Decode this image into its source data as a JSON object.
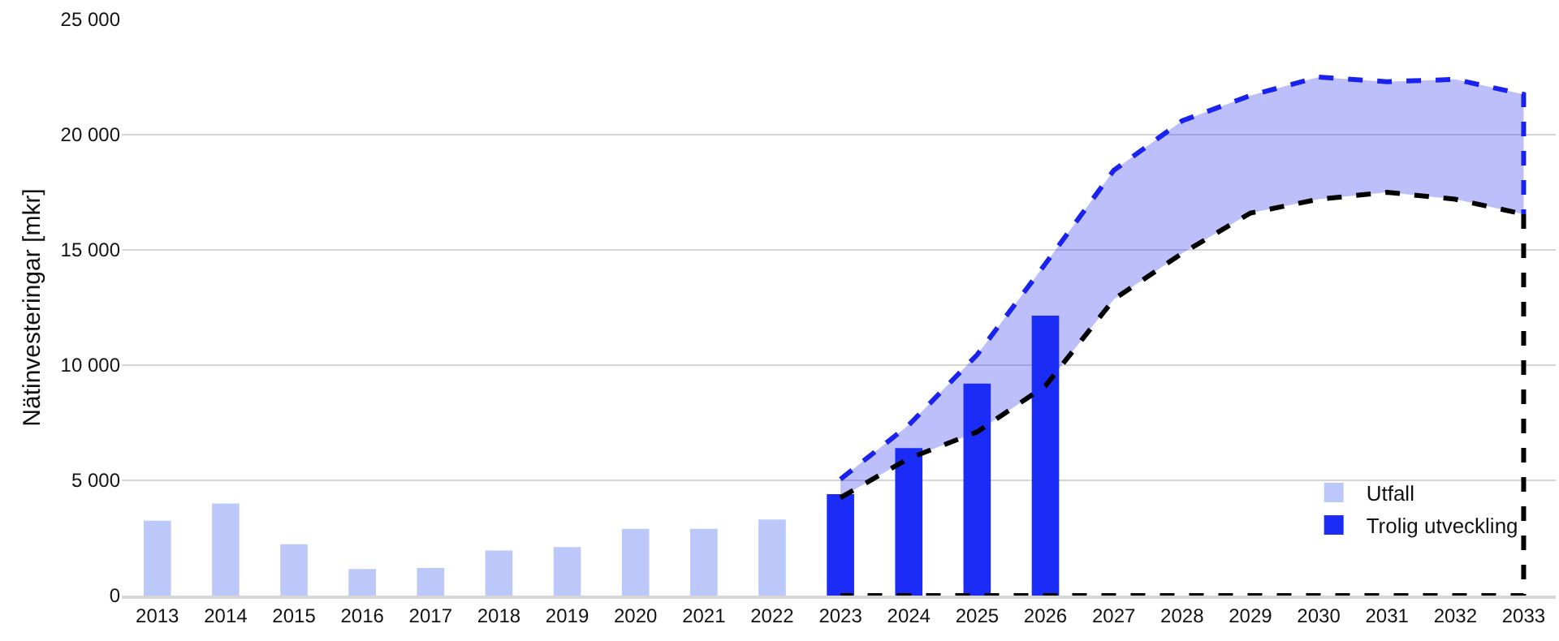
{
  "chart_data": {
    "type": "bar",
    "ylabel": "Nätinvesteringar [mkr]",
    "xlim": [
      2012.48,
      2033.47
    ],
    "xticks": [
      2013,
      2014,
      2015,
      2016,
      2017,
      2018,
      2019,
      2020,
      2021,
      2022,
      2023,
      2024,
      2025,
      2026,
      2027,
      2028,
      2029,
      2030,
      2031,
      2032,
      2033
    ],
    "ylim": [
      0,
      25000
    ],
    "yticks": [
      0,
      {
        "value": 5000,
        "label": "5 000"
      },
      {
        "value": 10000,
        "label": "10 000"
      },
      {
        "value": 15000,
        "label": "15 000"
      },
      {
        "value": 20000,
        "label": "20 000"
      },
      {
        "value": 25000,
        "label": "25 000"
      }
    ],
    "grid": "y",
    "legend": "bottom right",
    "series": [
      {
        "type": "line",
        "color": "#000000",
        "line_style": "dashed",
        "marker": "none",
        "x": [
          2023,
          2024,
          2025,
          2026,
          2027,
          2028,
          2029,
          2030,
          2031,
          2032,
          2033
        ],
        "values": [
          4250,
          5950,
          7100,
          9100,
          12850,
          14850,
          16600,
          17200,
          17500,
          17200,
          16550
        ]
      },
      {
        "type": "line",
        "color": "#1a22f0",
        "line_style": "dashed",
        "marker": "none",
        "x": [
          2023,
          2024,
          2025,
          2026,
          2027,
          2028,
          2029,
          2030,
          2031,
          2032,
          2033,
          2033
        ],
        "values": [
          5050,
          7400,
          10450,
          14400,
          18450,
          20600,
          21700,
          22500,
          22300,
          22400,
          21750,
          16550
        ],
        "upper": [
          5050,
          7400,
          10450,
          14400,
          18450,
          20600,
          21700,
          22500,
          22300,
          22400,
          21750,
          16550
        ],
        "lower": [
          4250,
          5950,
          7100,
          9100,
          12850,
          14850,
          16600,
          17200,
          17500,
          17200,
          16550,
          16550
        ]
      },
      {
        "type": "line",
        "color": "#000000",
        "line_style": "dashed",
        "marker": "none",
        "x": [
          2033,
          2033,
          2023
        ],
        "values": [
          16550,
          0,
          0
        ]
      },
      {
        "name": "Utfall",
        "color": "#bcc8fa",
        "x": [
          2013,
          2014,
          2015,
          2016,
          2017,
          2018,
          2019,
          2020,
          2021,
          2022
        ],
        "values": [
          3250,
          4000,
          2230,
          1150,
          1200,
          1950,
          2100,
          2900,
          2900,
          3300
        ]
      },
      {
        "name": "Trolig utveckling",
        "color": "#1a2cf5",
        "x": [
          2023,
          2024,
          2025,
          2026
        ],
        "values": [
          4400,
          6400,
          9200,
          12150
        ]
      }
    ]
  }
}
